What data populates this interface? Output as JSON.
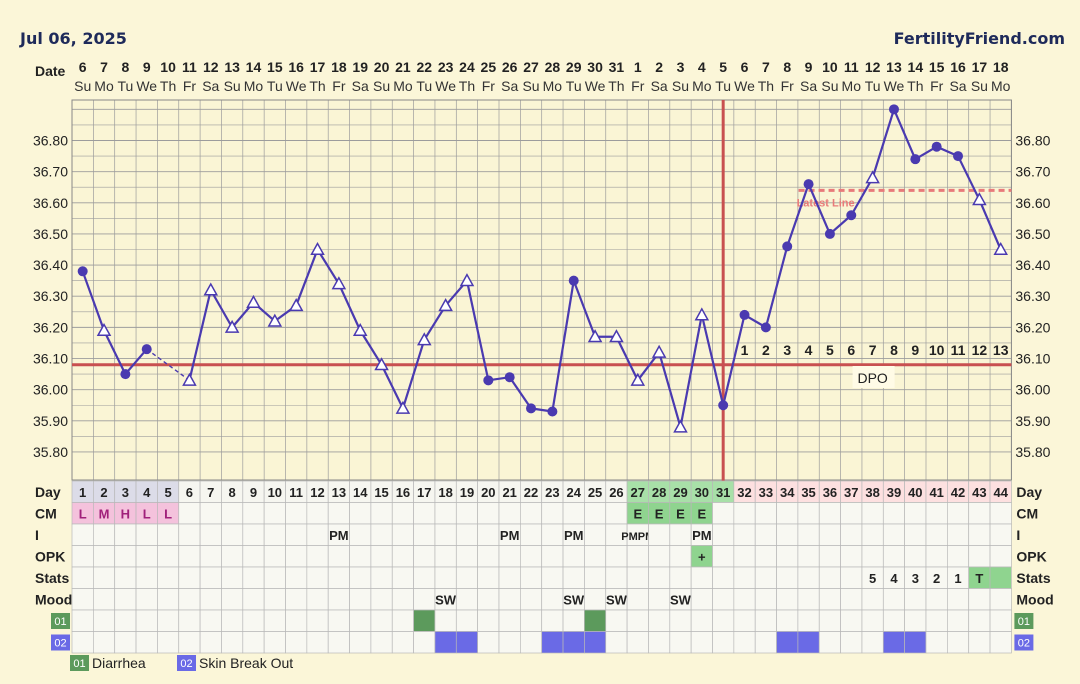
{
  "header": {
    "date": "Jul 06, 2025",
    "brand": "FertilityFriend.com"
  },
  "labels": {
    "date": "Date",
    "day": "Day",
    "cm": "CM",
    "intercourse": "I",
    "opk": "OPK",
    "stats": "Stats",
    "mood": "Mood",
    "dpo": "DPO",
    "latest_line": "Latest Line"
  },
  "chart_data": {
    "type": "line",
    "dates": [
      "6",
      "7",
      "8",
      "9",
      "10",
      "11",
      "12",
      "13",
      "14",
      "15",
      "16",
      "17",
      "18",
      "19",
      "20",
      "21",
      "22",
      "23",
      "24",
      "25",
      "26",
      "27",
      "28",
      "29",
      "30",
      "31",
      "1",
      "2",
      "3",
      "4",
      "5",
      "6",
      "7",
      "8",
      "9",
      "10",
      "11",
      "12",
      "13",
      "14",
      "15",
      "16",
      "17",
      "18"
    ],
    "weekdays": [
      "Su",
      "Mo",
      "Tu",
      "We",
      "Th",
      "Fr",
      "Sa",
      "Su",
      "Mo",
      "Tu",
      "We",
      "Th",
      "Fr",
      "Sa",
      "Su",
      "Mo",
      "Tu",
      "We",
      "Th",
      "Fr",
      "Sa",
      "Su",
      "Mo",
      "Tu",
      "We",
      "Th",
      "Fr",
      "Sa",
      "Su",
      "Mo",
      "Tu",
      "We",
      "Th",
      "Fr",
      "Sa",
      "Su",
      "Mo",
      "Tu",
      "We",
      "Th",
      "Fr",
      "Sa",
      "Su",
      "Mo"
    ],
    "cycle_days": [
      "1",
      "2",
      "3",
      "4",
      "5",
      "6",
      "7",
      "8",
      "9",
      "10",
      "11",
      "12",
      "13",
      "14",
      "15",
      "16",
      "17",
      "18",
      "19",
      "20",
      "21",
      "22",
      "23",
      "24",
      "25",
      "26",
      "27",
      "28",
      "29",
      "30",
      "31",
      "32",
      "33",
      "34",
      "35",
      "36",
      "37",
      "38",
      "39",
      "40",
      "41",
      "42",
      "43",
      "44"
    ],
    "temps": [
      36.38,
      36.19,
      36.05,
      36.13,
      null,
      36.03,
      36.32,
      36.2,
      36.28,
      36.22,
      36.27,
      36.45,
      36.34,
      36.19,
      36.08,
      35.94,
      36.16,
      36.27,
      36.35,
      36.03,
      36.04,
      35.94,
      35.93,
      36.35,
      36.17,
      36.17,
      36.03,
      36.12,
      35.88,
      36.24,
      35.95,
      36.24,
      36.2,
      36.46,
      36.66,
      36.5,
      36.56,
      36.68,
      36.9,
      36.74,
      36.78,
      36.75,
      36.61,
      36.45
    ],
    "markers": [
      "circle",
      "triangle",
      "circle",
      "circle",
      "none",
      "triangle",
      "triangle",
      "triangle",
      "triangle",
      "triangle",
      "triangle",
      "triangle",
      "triangle",
      "triangle",
      "triangle",
      "triangle",
      "triangle",
      "triangle",
      "triangle",
      "circle",
      "circle",
      "circle",
      "circle",
      "circle",
      "triangle",
      "triangle",
      "triangle",
      "triangle",
      "triangle",
      "triangle",
      "circle",
      "circle",
      "circle",
      "circle",
      "circle",
      "circle",
      "circle",
      "triangle",
      "circle",
      "circle",
      "circle",
      "circle",
      "triangle",
      "triangle"
    ],
    "y_ticks": [
      "35.80",
      "35.90",
      "36.00",
      "36.10",
      "36.20",
      "36.30",
      "36.40",
      "36.50",
      "36.60",
      "36.70",
      "36.80"
    ],
    "ylim": [
      35.71,
      36.93
    ],
    "coverline": 36.08,
    "latest_line": 36.64,
    "ovulation_day_index": 30,
    "dpo_labels": [
      "1",
      "2",
      "3",
      "4",
      "5",
      "6",
      "7",
      "8",
      "9",
      "10",
      "11",
      "12",
      "13"
    ],
    "dpo_start_index": 31
  },
  "rows": {
    "cm": [
      "L",
      "M",
      "H",
      "L",
      "L",
      "",
      "",
      "",
      "",
      "",
      "",
      "",
      "",
      "",
      "",
      "",
      "",
      "",
      "",
      "",
      "",
      "",
      "",
      "",
      "",
      "",
      "E",
      "E",
      "E",
      "E",
      "",
      "",
      "",
      "",
      "",
      "",
      "",
      "",
      "",
      "",
      "",
      "",
      "",
      ""
    ],
    "intercourse": [
      "",
      "",
      "",
      "",
      "",
      "",
      "",
      "",
      "",
      "",
      "",
      "",
      "PM",
      "",
      "",
      "",
      "",
      "",
      "",
      "",
      "PM",
      "",
      "",
      "PM",
      "",
      "",
      "PMPM",
      "",
      "",
      "PM",
      "",
      "",
      "",
      "",
      "",
      "",
      "",
      "",
      "",
      "",
      "",
      "",
      "",
      ""
    ],
    "opk": [
      "",
      "",
      "",
      "",
      "",
      "",
      "",
      "",
      "",
      "",
      "",
      "",
      "",
      "",
      "",
      "",
      "",
      "",
      "",
      "",
      "",
      "",
      "",
      "",
      "",
      "",
      "",
      "",
      "",
      "+",
      "",
      "",
      "",
      "",
      "",
      "",
      "",
      "",
      "",
      "",
      "",
      "",
      "",
      ""
    ],
    "stats": [
      "",
      "",
      "",
      "",
      "",
      "",
      "",
      "",
      "",
      "",
      "",
      "",
      "",
      "",
      "",
      "",
      "",
      "",
      "",
      "",
      "",
      "",
      "",
      "",
      "",
      "",
      "",
      "",
      "",
      "",
      "",
      "",
      "",
      "",
      "",
      "",
      "",
      "5",
      "4",
      "3",
      "2",
      "1",
      "T",
      ""
    ],
    "mood": [
      "",
      "",
      "",
      "",
      "",
      "",
      "",
      "",
      "",
      "",
      "",
      "",
      "",
      "",
      "",
      "",
      "",
      "SW",
      "",
      "",
      "",
      "",
      "",
      "SW",
      "",
      "SW",
      "",
      "",
      "SW",
      "",
      "",
      "",
      "",
      "",
      "",
      "",
      "",
      "",
      "",
      "",
      "",
      "",
      "",
      ""
    ]
  },
  "symptoms": {
    "s1": {
      "code": "01",
      "name": "Diarrhea",
      "color": "#5c9a5c",
      "days": [
        16,
        24
      ]
    },
    "s2": {
      "code": "02",
      "name": "Skin Break Out",
      "color": "#6a6ae6",
      "days": [
        17,
        18,
        22,
        23,
        24,
        33,
        34,
        38,
        39
      ]
    }
  },
  "colors": {
    "line": "#4a3ab0",
    "coverline": "#c85050",
    "latest": "#e87a7a",
    "cm_pink": "#f4c2dc",
    "cm_green": "#8fd48f",
    "luteal": "#fde0e0",
    "fertile_day": "#a8e0a8",
    "grid": "#9c9c9c"
  }
}
